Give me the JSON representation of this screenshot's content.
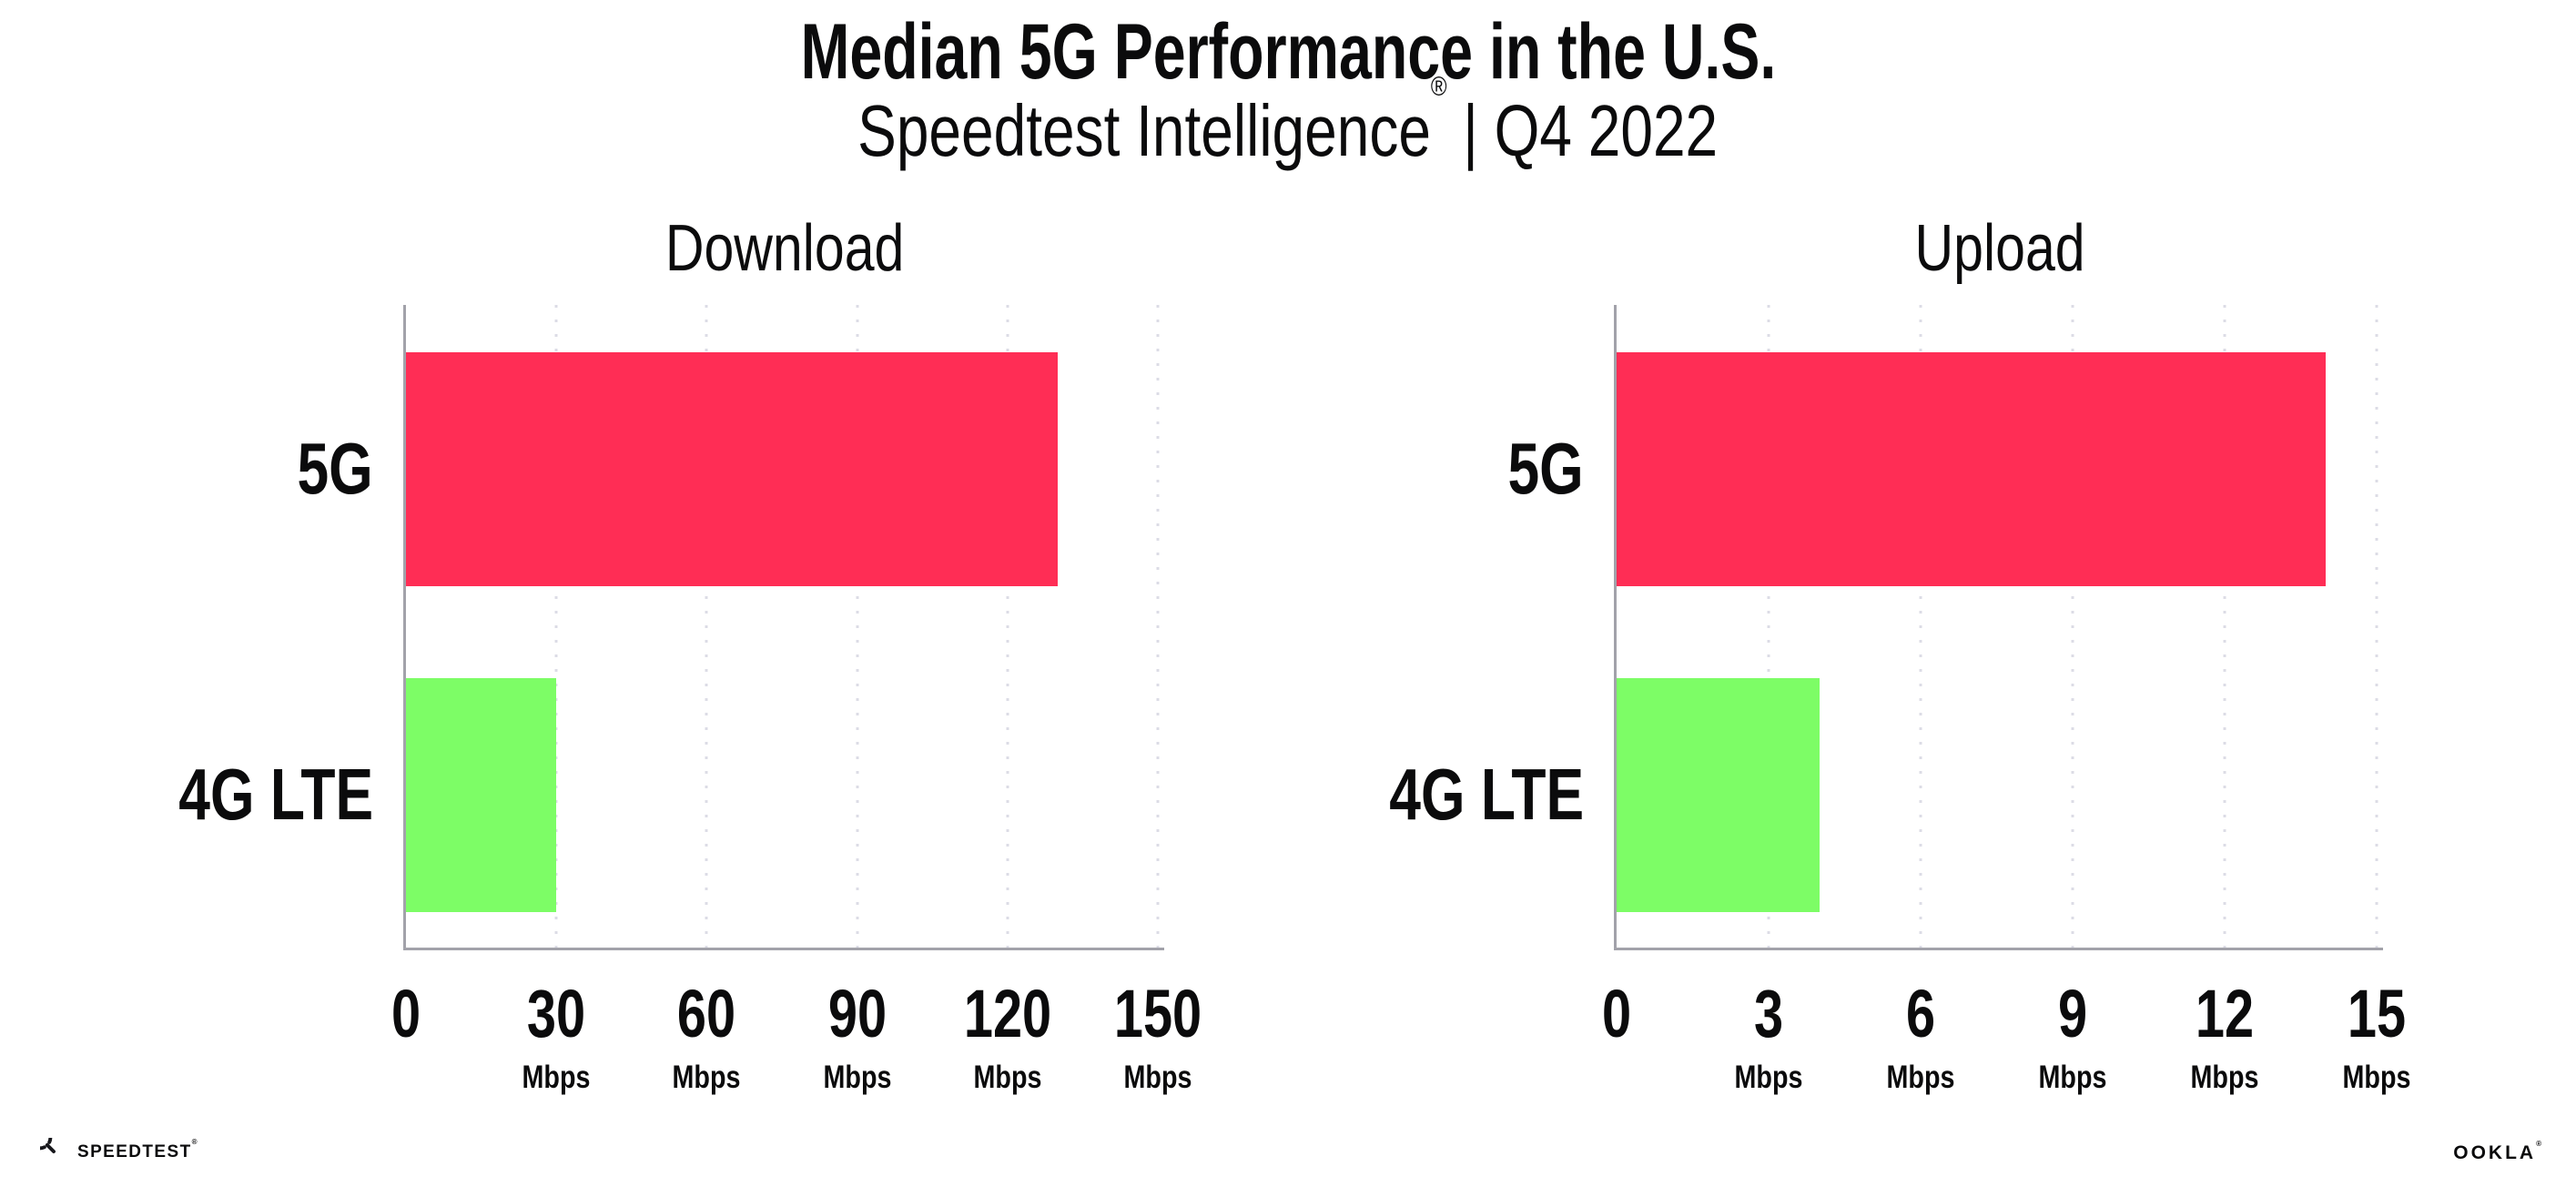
{
  "header": {
    "title": "Median 5G Performance in the U.S.",
    "subtitle_brand": "Speedtest Intelligence",
    "subtitle_registered": "®",
    "subtitle_tail": "| Q4 2022"
  },
  "footer": {
    "speedtest_label": "SPEEDTEST",
    "speedtest_registered": "®",
    "ookla_label": "OOKLA",
    "ookla_registered": "®"
  },
  "colors": {
    "bar_5g": "#FF2D55",
    "bar_4g_lte": "#7DFD66",
    "axis": "#A2A2AA",
    "gridline": "#DCDCE6",
    "text": "#0B0B0C"
  },
  "chart_data": [
    {
      "type": "bar",
      "orientation": "horizontal",
      "title": "Download",
      "categories": [
        "5G",
        "4G LTE"
      ],
      "values": [
        130,
        30
      ],
      "unit": "Mbps",
      "xlim": [
        0,
        150
      ],
      "xticks": [
        0,
        30,
        60,
        90,
        120,
        150
      ],
      "xtick_unit": "Mbps",
      "grid": "dotted-vertical",
      "legend": "none",
      "bar_colors": [
        "#FF2D55",
        "#7DFD66"
      ]
    },
    {
      "type": "bar",
      "orientation": "horizontal",
      "title": "Upload",
      "categories": [
        "5G",
        "4G LTE"
      ],
      "values": [
        14,
        4
      ],
      "unit": "Mbps",
      "xlim": [
        0,
        15
      ],
      "xticks": [
        0,
        3,
        6,
        9,
        12,
        15
      ],
      "xtick_unit": "Mbps",
      "grid": "dotted-vertical",
      "legend": "none",
      "bar_colors": [
        "#FF2D55",
        "#7DFD66"
      ]
    }
  ]
}
